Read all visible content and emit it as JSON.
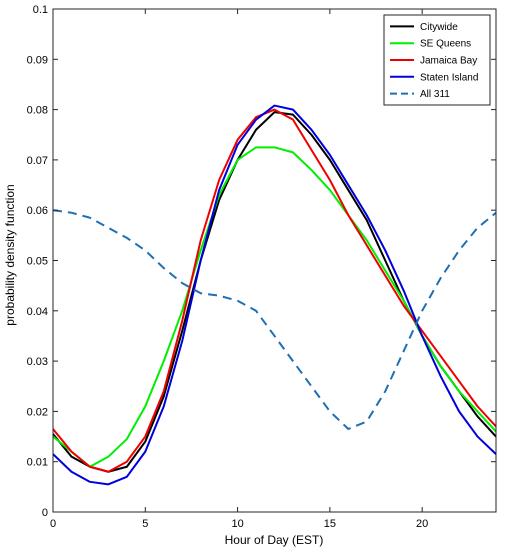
{
  "chart_data": {
    "type": "line",
    "title": "",
    "xlabel": "Hour of Day (EST)",
    "ylabel": "probability density function",
    "xlim": [
      0,
      24
    ],
    "ylim": [
      0,
      0.1
    ],
    "x_ticks": [
      0,
      5,
      10,
      15,
      20
    ],
    "y_ticks": [
      0,
      0.01,
      0.02,
      0.03,
      0.04,
      0.05,
      0.06,
      0.07,
      0.08,
      0.09,
      0.1
    ],
    "x_tick_labels": [
      "0",
      "5",
      "10",
      "15",
      "20"
    ],
    "y_tick_labels": [
      "0",
      "0.01",
      "0.02",
      "0.03",
      "0.04",
      "0.05",
      "0.06",
      "0.07",
      "0.08",
      "0.09",
      "0.1"
    ],
    "grid": false,
    "legend_position": "top-right",
    "series": [
      {
        "name": "Citywide",
        "color": "#000000",
        "dash": "solid",
        "x": [
          0,
          1,
          2,
          3,
          4,
          5,
          6,
          7,
          8,
          9,
          10,
          11,
          12,
          13,
          14,
          15,
          16,
          17,
          18,
          19,
          20,
          21,
          22,
          23,
          24
        ],
        "y": [
          0.0155,
          0.011,
          0.009,
          0.008,
          0.009,
          0.014,
          0.023,
          0.036,
          0.05,
          0.062,
          0.07,
          0.076,
          0.0795,
          0.079,
          0.075,
          0.07,
          0.064,
          0.058,
          0.05,
          0.042,
          0.035,
          0.029,
          0.024,
          0.019,
          0.015
        ]
      },
      {
        "name": "SE Queens",
        "color": "#00ee00",
        "dash": "solid",
        "x": [
          0,
          1,
          2,
          3,
          4,
          5,
          6,
          7,
          8,
          9,
          10,
          11,
          12,
          13,
          14,
          15,
          16,
          17,
          18,
          19,
          20,
          21,
          22,
          23,
          24
        ],
        "y": [
          0.015,
          0.012,
          0.009,
          0.011,
          0.0145,
          0.021,
          0.03,
          0.04,
          0.052,
          0.063,
          0.07,
          0.0725,
          0.0725,
          0.0715,
          0.068,
          0.064,
          0.059,
          0.054,
          0.048,
          0.042,
          0.035,
          0.029,
          0.024,
          0.02,
          0.016
        ]
      },
      {
        "name": "Jamaica Bay",
        "color": "#ee0000",
        "dash": "solid",
        "x": [
          0,
          1,
          2,
          3,
          4,
          5,
          6,
          7,
          8,
          9,
          10,
          11,
          12,
          13,
          14,
          15,
          16,
          17,
          18,
          19,
          20,
          21,
          22,
          23,
          24
        ],
        "y": [
          0.0165,
          0.012,
          0.009,
          0.008,
          0.01,
          0.015,
          0.024,
          0.038,
          0.054,
          0.066,
          0.074,
          0.0785,
          0.08,
          0.078,
          0.072,
          0.066,
          0.059,
          0.053,
          0.047,
          0.041,
          0.036,
          0.031,
          0.026,
          0.021,
          0.017
        ]
      },
      {
        "name": "Staten Island",
        "color": "#0000dd",
        "dash": "solid",
        "x": [
          0,
          1,
          2,
          3,
          4,
          5,
          6,
          7,
          8,
          9,
          10,
          11,
          12,
          13,
          14,
          15,
          16,
          17,
          18,
          19,
          20,
          21,
          22,
          23,
          24
        ],
        "y": [
          0.0115,
          0.008,
          0.006,
          0.0055,
          0.007,
          0.012,
          0.021,
          0.034,
          0.05,
          0.064,
          0.073,
          0.078,
          0.0808,
          0.08,
          0.076,
          0.071,
          0.065,
          0.059,
          0.052,
          0.044,
          0.035,
          0.027,
          0.02,
          0.015,
          0.0115
        ]
      },
      {
        "name": "All 311",
        "color": "#1f6fb4",
        "dash": "dashed",
        "x": [
          0,
          1,
          2,
          3,
          4,
          5,
          6,
          7,
          8,
          9,
          10,
          11,
          12,
          13,
          14,
          15,
          16,
          17,
          18,
          19,
          20,
          21,
          22,
          23,
          24
        ],
        "y": [
          0.06,
          0.0595,
          0.0585,
          0.0565,
          0.0545,
          0.052,
          0.0485,
          0.0455,
          0.0435,
          0.043,
          0.042,
          0.04,
          0.035,
          0.03,
          0.025,
          0.02,
          0.0165,
          0.018,
          0.024,
          0.032,
          0.04,
          0.0465,
          0.052,
          0.0565,
          0.0595
        ]
      }
    ]
  }
}
